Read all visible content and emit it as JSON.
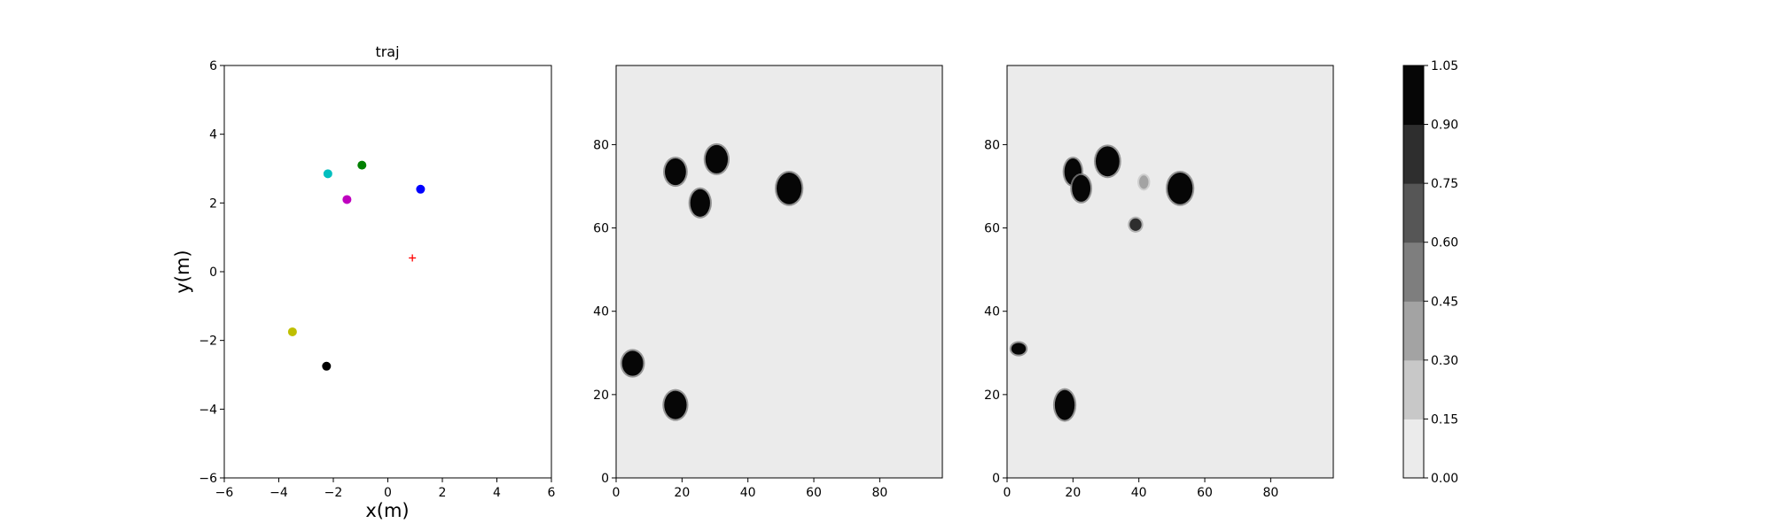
{
  "chart_data": [
    {
      "type": "scatter",
      "title": "traj",
      "xlabel": "x(m)",
      "ylabel": "y(m)",
      "xlim": [
        -6,
        6
      ],
      "ylim": [
        -6,
        6
      ],
      "xticks": [
        "−6",
        "−4",
        "−2",
        "0",
        "2",
        "4",
        "6"
      ],
      "yticks": [
        "−6",
        "−4",
        "−2",
        "0",
        "2",
        "4",
        "6"
      ],
      "grid": false,
      "points": [
        {
          "x": -2.2,
          "y": 2.85,
          "color": "#00bfbf",
          "marker": "circle"
        },
        {
          "x": -0.95,
          "y": 3.1,
          "color": "#008000",
          "marker": "circle"
        },
        {
          "x": 1.2,
          "y": 2.4,
          "color": "#0000ff",
          "marker": "circle"
        },
        {
          "x": -1.5,
          "y": 2.1,
          "color": "#bf00bf",
          "marker": "circle"
        },
        {
          "x": 0.9,
          "y": 0.4,
          "color": "#ff0000",
          "marker": "plus"
        },
        {
          "x": -3.5,
          "y": -1.75,
          "color": "#bfbf00",
          "marker": "circle"
        },
        {
          "x": -2.25,
          "y": -2.75,
          "color": "#000000",
          "marker": "circle"
        }
      ]
    },
    {
      "type": "heatmap",
      "xlim": [
        0,
        99
      ],
      "ylim": [
        0,
        99
      ],
      "xticks": [
        "0",
        "20",
        "40",
        "60",
        "80"
      ],
      "yticks": [
        "0",
        "20",
        "40",
        "60",
        "80"
      ],
      "blobs": [
        {
          "x": 18,
          "y": 73.5,
          "rx": 3.2,
          "ry": 3.2,
          "value": 1.0
        },
        {
          "x": 30.5,
          "y": 76.5,
          "rx": 3.4,
          "ry": 3.4,
          "value": 1.0
        },
        {
          "x": 25.5,
          "y": 66,
          "rx": 3.0,
          "ry": 3.3,
          "value": 1.0
        },
        {
          "x": 52.5,
          "y": 69.5,
          "rx": 3.8,
          "ry": 3.8,
          "value": 1.0
        },
        {
          "x": 5,
          "y": 27.5,
          "rx": 3.2,
          "ry": 3.0,
          "value": 1.0
        },
        {
          "x": 18,
          "y": 17.5,
          "rx": 3.4,
          "ry": 3.4,
          "value": 1.0
        }
      ]
    },
    {
      "type": "heatmap",
      "xlim": [
        0,
        99
      ],
      "ylim": [
        0,
        99
      ],
      "xticks": [
        "0",
        "20",
        "40",
        "60",
        "80"
      ],
      "yticks": [
        "0",
        "20",
        "40",
        "60",
        "80"
      ],
      "blobs": [
        {
          "x": 20,
          "y": 73.5,
          "rx": 2.6,
          "ry": 3.2,
          "value": 1.0
        },
        {
          "x": 22.5,
          "y": 69.5,
          "rx": 2.8,
          "ry": 3.2,
          "value": 1.0
        },
        {
          "x": 30.5,
          "y": 76,
          "rx": 3.6,
          "ry": 3.6,
          "value": 1.0
        },
        {
          "x": 52.5,
          "y": 69.5,
          "rx": 3.8,
          "ry": 3.8,
          "value": 1.0
        },
        {
          "x": 41.5,
          "y": 71,
          "rx": 1.4,
          "ry": 1.6,
          "value": 0.4
        },
        {
          "x": 39,
          "y": 60.8,
          "rx": 1.8,
          "ry": 1.5,
          "value": 0.85
        },
        {
          "x": 3.5,
          "y": 31,
          "rx": 2.2,
          "ry": 1.4,
          "value": 0.9
        },
        {
          "x": 17.5,
          "y": 17.5,
          "rx": 3.0,
          "ry": 3.6,
          "value": 1.0
        }
      ]
    },
    {
      "type": "colorbar",
      "ticks": [
        "0.00",
        "0.15",
        "0.30",
        "0.45",
        "0.60",
        "0.75",
        "0.90",
        "1.05"
      ],
      "levels": [
        0.0,
        0.15,
        0.3,
        0.45,
        0.6,
        0.75,
        0.9,
        1.05
      ],
      "colors": [
        "#ebebeb",
        "#c8c8c8",
        "#a3a3a3",
        "#7e7e7e",
        "#565656",
        "#2e2e2e",
        "#060606"
      ]
    }
  ]
}
